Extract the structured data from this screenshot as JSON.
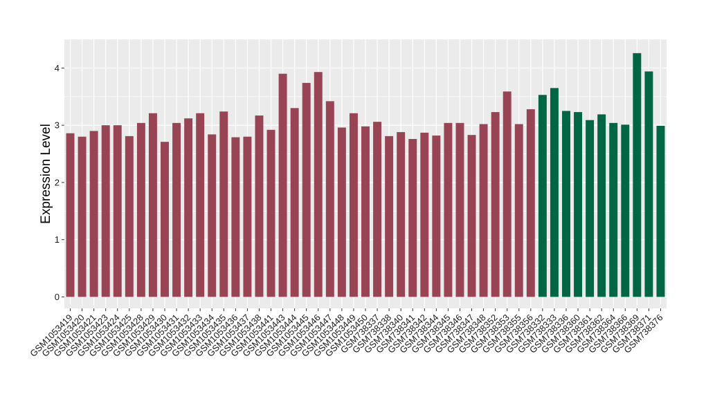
{
  "chart_data": {
    "type": "bar",
    "title": "",
    "xlabel": "",
    "ylabel": "Expression Level",
    "ylim": [
      -0.2,
      4.5
    ],
    "yticks": [
      0,
      1,
      2,
      3,
      4
    ],
    "grid": true,
    "panel_background": "#EBEBEB",
    "grid_color": "#FFFFFF",
    "categories": [
      "GSM1053419",
      "GSM1053420",
      "GSM1053421",
      "GSM1053423",
      "GSM1053424",
      "GSM1053425",
      "GSM1053428",
      "GSM1053429",
      "GSM1053430",
      "GSM1053431",
      "GSM1053432",
      "GSM1053433",
      "GSM1053434",
      "GSM1053435",
      "GSM1053436",
      "GSM1053437",
      "GSM1053438",
      "GSM1053441",
      "GSM1053443",
      "GSM1053444",
      "GSM1053445",
      "GSM1053446",
      "GSM1053447",
      "GSM1053448",
      "GSM1053449",
      "GSM1053450",
      "GSM738337",
      "GSM738338",
      "GSM738340",
      "GSM738341",
      "GSM738342",
      "GSM738344",
      "GSM738345",
      "GSM738346",
      "GSM738347",
      "GSM738348",
      "GSM738352",
      "GSM738353",
      "GSM738355",
      "GSM738356",
      "GSM738332",
      "GSM738333",
      "GSM738336",
      "GSM738360",
      "GSM738361",
      "GSM738362",
      "GSM738364",
      "GSM738366",
      "GSM738369",
      "GSM738371",
      "GSM738376"
    ],
    "values": [
      2.86,
      2.8,
      2.9,
      3.0,
      3.0,
      2.81,
      3.04,
      3.21,
      2.71,
      3.04,
      3.12,
      3.21,
      2.84,
      3.24,
      2.79,
      2.8,
      3.17,
      2.92,
      3.9,
      3.3,
      3.74,
      3.93,
      3.42,
      2.96,
      3.21,
      2.98,
      3.06,
      2.81,
      2.88,
      2.76,
      2.87,
      2.82,
      3.04,
      3.04,
      2.83,
      3.02,
      3.23,
      3.59,
      3.02,
      3.28,
      3.53,
      3.65,
      3.25,
      3.23,
      3.09,
      3.19,
      3.04,
      3.01,
      4.26,
      3.94,
      2.99
    ],
    "groups": [
      0,
      0,
      0,
      0,
      0,
      0,
      0,
      0,
      0,
      0,
      0,
      0,
      0,
      0,
      0,
      0,
      0,
      0,
      0,
      0,
      0,
      0,
      0,
      0,
      0,
      0,
      0,
      0,
      0,
      0,
      0,
      0,
      0,
      0,
      0,
      0,
      0,
      0,
      0,
      0,
      1,
      1,
      1,
      1,
      1,
      1,
      1,
      1,
      1,
      1,
      1
    ],
    "colors": [
      "#994455",
      "#006644"
    ]
  }
}
